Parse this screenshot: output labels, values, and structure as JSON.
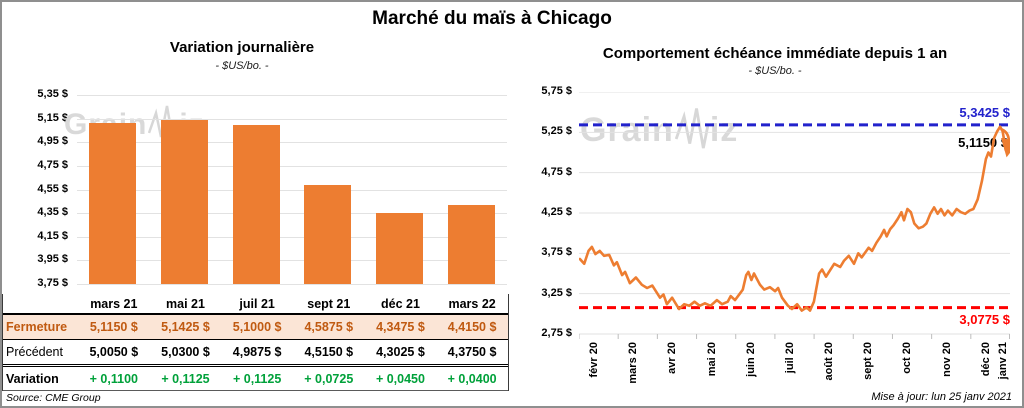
{
  "page": {
    "title": "Marché du maïs à Chicago",
    "source": "Source: CME Group",
    "updated": "Mise à jour: lun 25 janv 2021",
    "watermark": {
      "prefix": "Grain",
      "suffix": "iz"
    }
  },
  "colors": {
    "orange": "#ED7D31",
    "green": "#00A13A",
    "fermeture_text": "#C05A11",
    "fermeture_bg": "#FBE5D6",
    "blue": "#2222CC",
    "red": "#FF0000",
    "grid": "#e2e2e2"
  },
  "chart_data": [
    {
      "type": "bar",
      "title": "Variation journalière",
      "subtitle": "- $US/bo. -",
      "categories": [
        "mars 21",
        "mai 21",
        "juil 21",
        "sept 21",
        "déc 21",
        "mars 22"
      ],
      "values": [
        5.115,
        5.1425,
        5.1,
        4.5875,
        4.3475,
        4.415
      ],
      "ylim": [
        3.75,
        5.35
      ],
      "yticks": [
        {
          "v": 5.35,
          "label": "5,35 $"
        },
        {
          "v": 5.15,
          "label": "5,15 $"
        },
        {
          "v": 4.95,
          "label": "4,95 $"
        },
        {
          "v": 4.75,
          "label": "4,75 $"
        },
        {
          "v": 4.55,
          "label": "4,55 $"
        },
        {
          "v": 4.35,
          "label": "4,35 $"
        },
        {
          "v": 4.15,
          "label": "4,15 $"
        },
        {
          "v": 3.95,
          "label": "3,95 $"
        },
        {
          "v": 3.75,
          "label": "3,75 $"
        }
      ],
      "grid": true,
      "bar_color": "#ED7D31"
    },
    {
      "type": "line",
      "title": "Comportement échéance immédiate depuis 1 an",
      "subtitle": "- $US/bo. -",
      "x_labels": [
        "févr 20",
        "mars 20",
        "avr 20",
        "mai 20",
        "juin 20",
        "juil 20",
        "août 20",
        "sept 20",
        "oct 20",
        "nov 20",
        "déc 20",
        "janv 21"
      ],
      "ylim": [
        2.75,
        5.75
      ],
      "yticks": [
        {
          "v": 5.75,
          "label": "5,75 $"
        },
        {
          "v": 5.25,
          "label": "5,25 $"
        },
        {
          "v": 4.75,
          "label": "4,75 $"
        },
        {
          "v": 4.25,
          "label": "4,25 $"
        },
        {
          "v": 3.75,
          "label": "3,75 $"
        },
        {
          "v": 3.25,
          "label": "3,25 $"
        },
        {
          "v": 2.75,
          "label": "2,75 $"
        }
      ],
      "grid": true,
      "line_color": "#ED7D31",
      "series": [
        {
          "name": "échéance immédiate",
          "points": [
            [
              0.002,
              3.68
            ],
            [
              0.012,
              3.62
            ],
            [
              0.022,
              3.78
            ],
            [
              0.03,
              3.83
            ],
            [
              0.038,
              3.74
            ],
            [
              0.048,
              3.78
            ],
            [
              0.058,
              3.72
            ],
            [
              0.07,
              3.73
            ],
            [
              0.081,
              3.6
            ],
            [
              0.088,
              3.64
            ],
            [
              0.1,
              3.48
            ],
            [
              0.107,
              3.52
            ],
            [
              0.118,
              3.38
            ],
            [
              0.132,
              3.45
            ],
            [
              0.146,
              3.36
            ],
            [
              0.158,
              3.32
            ],
            [
              0.17,
              3.35
            ],
            [
              0.188,
              3.2
            ],
            [
              0.196,
              3.24
            ],
            [
              0.204,
              3.12
            ],
            [
              0.216,
              3.2
            ],
            [
              0.232,
              3.06
            ],
            [
              0.244,
              3.12
            ],
            [
              0.256,
              3.1
            ],
            [
              0.268,
              3.15
            ],
            [
              0.28,
              3.1
            ],
            [
              0.292,
              3.13
            ],
            [
              0.305,
              3.1
            ],
            [
              0.32,
              3.17
            ],
            [
              0.332,
              3.12
            ],
            [
              0.345,
              3.15
            ],
            [
              0.352,
              3.22
            ],
            [
              0.362,
              3.17
            ],
            [
              0.373,
              3.25
            ],
            [
              0.38,
              3.3
            ],
            [
              0.388,
              3.48
            ],
            [
              0.393,
              3.52
            ],
            [
              0.4,
              3.42
            ],
            [
              0.406,
              3.5
            ],
            [
              0.42,
              3.36
            ],
            [
              0.43,
              3.3
            ],
            [
              0.443,
              3.33
            ],
            [
              0.455,
              3.28
            ],
            [
              0.462,
              3.32
            ],
            [
              0.471,
              3.2
            ],
            [
              0.485,
              3.1
            ],
            [
              0.494,
              3.06
            ],
            [
              0.506,
              3.12
            ],
            [
              0.517,
              3.04
            ],
            [
              0.528,
              3.08
            ],
            [
              0.536,
              3.04
            ],
            [
              0.545,
              3.15
            ],
            [
              0.55,
              3.3
            ],
            [
              0.557,
              3.5
            ],
            [
              0.564,
              3.55
            ],
            [
              0.573,
              3.46
            ],
            [
              0.58,
              3.52
            ],
            [
              0.592,
              3.62
            ],
            [
              0.606,
              3.58
            ],
            [
              0.615,
              3.66
            ],
            [
              0.626,
              3.72
            ],
            [
              0.638,
              3.62
            ],
            [
              0.648,
              3.75
            ],
            [
              0.656,
              3.7
            ],
            [
              0.664,
              3.76
            ],
            [
              0.672,
              3.82
            ],
            [
              0.68,
              3.78
            ],
            [
              0.69,
              3.88
            ],
            [
              0.7,
              3.96
            ],
            [
              0.708,
              4.04
            ],
            [
              0.714,
              3.96
            ],
            [
              0.722,
              4.05
            ],
            [
              0.73,
              4.1
            ],
            [
              0.74,
              4.18
            ],
            [
              0.748,
              4.26
            ],
            [
              0.754,
              4.16
            ],
            [
              0.762,
              4.3
            ],
            [
              0.77,
              4.26
            ],
            [
              0.778,
              4.12
            ],
            [
              0.788,
              4.06
            ],
            [
              0.798,
              4.08
            ],
            [
              0.806,
              4.12
            ],
            [
              0.815,
              4.24
            ],
            [
              0.824,
              4.32
            ],
            [
              0.832,
              4.24
            ],
            [
              0.84,
              4.3
            ],
            [
              0.848,
              4.22
            ],
            [
              0.856,
              4.28
            ],
            [
              0.866,
              4.22
            ],
            [
              0.876,
              4.3
            ],
            [
              0.886,
              4.26
            ],
            [
              0.896,
              4.24
            ],
            [
              0.906,
              4.28
            ],
            [
              0.915,
              4.3
            ],
            [
              0.925,
              4.42
            ],
            [
              0.935,
              4.65
            ],
            [
              0.944,
              4.92
            ],
            [
              0.95,
              5.0
            ],
            [
              0.956,
              4.95
            ],
            [
              0.963,
              5.18
            ],
            [
              0.97,
              5.26
            ],
            [
              0.977,
              5.32
            ],
            [
              0.983,
              5.26
            ],
            [
              0.99,
              5.03
            ],
            [
              0.997,
              5.12
            ]
          ]
        }
      ],
      "ref_lines": [
        {
          "value": 5.3425,
          "label": "5,3425 $",
          "color": "#2222CC"
        },
        {
          "value": 3.0775,
          "label": "3,0775 $",
          "color": "#FF0000"
        }
      ],
      "end_annotation": {
        "label": "5,1150 $",
        "value": 5.115,
        "arrow_from": [
          0.979,
          5.29
        ],
        "arrow_to": [
          0.996,
          5.05
        ]
      }
    }
  ],
  "table": {
    "columns": [
      "mars 21",
      "mai 21",
      "juil 21",
      "sept 21",
      "déc 21",
      "mars 22"
    ],
    "rows": [
      {
        "id": "fermeture",
        "label": "Fermeture",
        "values": [
          "5,1150  $",
          "5,1425  $",
          "5,1000  $",
          "4,5875  $",
          "4,3475  $",
          "4,4150  $"
        ]
      },
      {
        "id": "precedent",
        "label": "Précédent",
        "values": [
          "5,0050  $",
          "5,0300  $",
          "4,9875  $",
          "4,5150  $",
          "4,3025  $",
          "4,3750  $"
        ]
      },
      {
        "id": "variation",
        "label": "Variation",
        "values": [
          "+ 0,1100",
          "+ 0,1125",
          "+ 0,1125",
          "+ 0,0725",
          "+ 0,0450",
          "+ 0,0400"
        ]
      }
    ]
  }
}
